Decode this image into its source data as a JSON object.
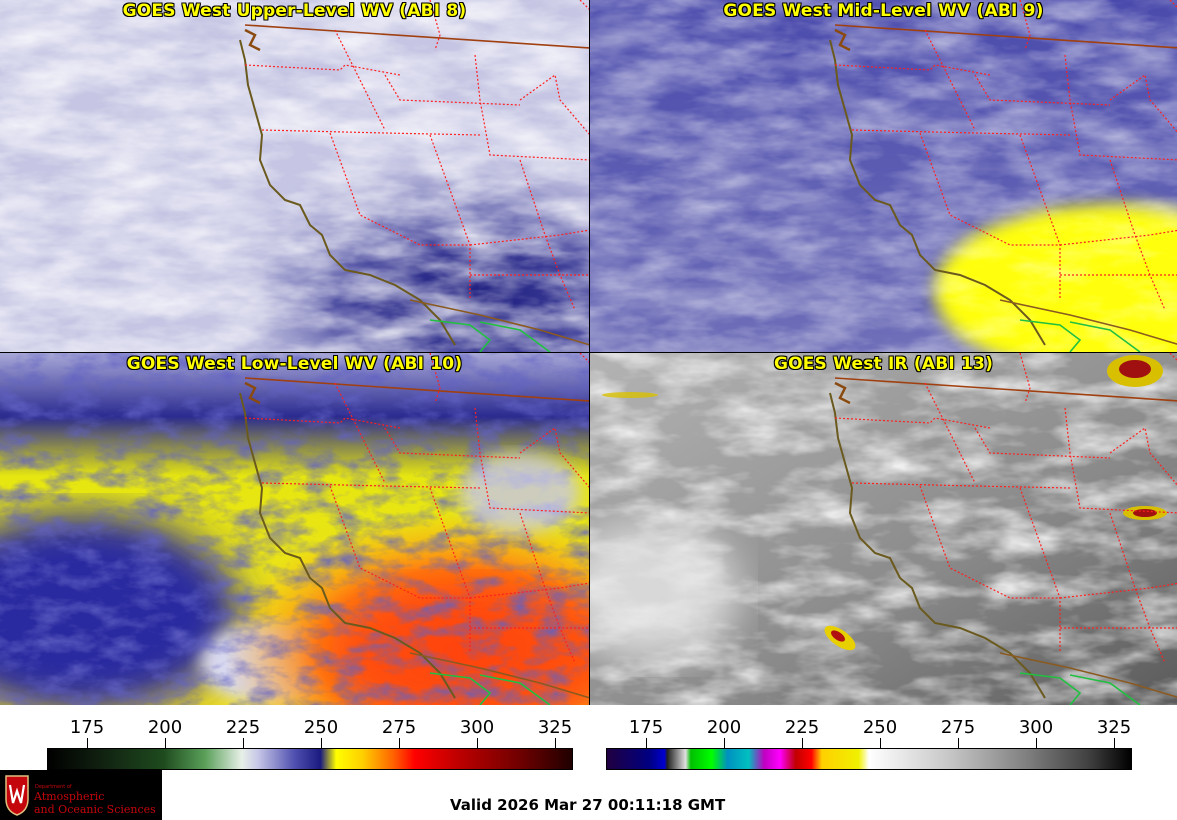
{
  "panels": [
    {
      "title": "GOES West Upper-Level WV (ABI 8)"
    },
    {
      "title": "GOES West Mid-Level WV (ABI 9)"
    },
    {
      "title": "GOES West Low-Level WV (ABI 10)"
    },
    {
      "title": "GOES West IR (ABI 13)"
    }
  ],
  "colorbars": {
    "wv": {
      "ticks": [
        "175",
        "200",
        "225",
        "250",
        "275",
        "300",
        "325"
      ]
    },
    "ir": {
      "ticks": [
        "175",
        "200",
        "225",
        "250",
        "275",
        "300",
        "325"
      ]
    }
  },
  "logo": {
    "small": "Department of",
    "line1": "Atmospheric",
    "line2": "and Oceanic Sciences"
  },
  "valid": "Valid 2026 Mar 27 00:11:18 GMT",
  "colors": {
    "title_text": "#ffff00",
    "state_borders": "#ff2020",
    "coastline": "#6b5a1e",
    "country_border": "#a04010",
    "mexico_border": "#20c040",
    "logo_red": "#c5050c"
  }
}
